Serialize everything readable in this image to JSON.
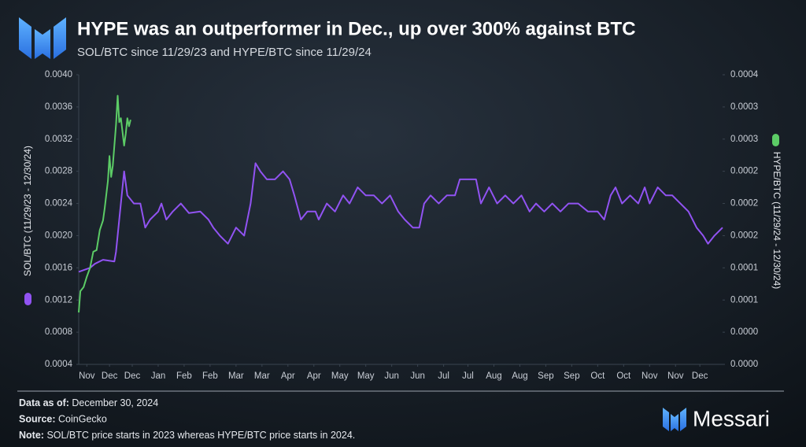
{
  "chart_data": {
    "type": "line",
    "title": "HYPE was an outperformer in Dec., up over 300% against BTC",
    "subtitle": "SOL/BTC since 11/29/23 and HYPE/BTC since 11/29/24",
    "ylabel": "SOL/BTC (11/29/23 - 12/30/24)",
    "y2label": "HYPE/BTC (11/29/24 - 12/30/24)",
    "xlim": [
      0,
      397
    ],
    "xticks": [
      {
        "value": 5,
        "label": "Nov"
      },
      {
        "value": 19,
        "label": "Dec"
      },
      {
        "value": 33,
        "label": "Dec"
      },
      {
        "value": 49,
        "label": "Jan"
      },
      {
        "value": 65,
        "label": "Feb"
      },
      {
        "value": 81,
        "label": "Feb"
      },
      {
        "value": 97,
        "label": "Mar"
      },
      {
        "value": 113,
        "label": "Mar"
      },
      {
        "value": 129,
        "label": "Apr"
      },
      {
        "value": 145,
        "label": "Apr"
      },
      {
        "value": 161,
        "label": "May"
      },
      {
        "value": 177,
        "label": "May"
      },
      {
        "value": 193,
        "label": "Jun"
      },
      {
        "value": 209,
        "label": "Jun"
      },
      {
        "value": 225,
        "label": "Jul"
      },
      {
        "value": 240,
        "label": "Jul"
      },
      {
        "value": 256,
        "label": "Aug"
      },
      {
        "value": 272,
        "label": "Aug"
      },
      {
        "value": 288,
        "label": "Sep"
      },
      {
        "value": 304,
        "label": "Sep"
      },
      {
        "value": 320,
        "label": "Oct"
      },
      {
        "value": 336,
        "label": "Oct"
      },
      {
        "value": 352,
        "label": "Nov"
      },
      {
        "value": 368,
        "label": "Nov"
      },
      {
        "value": 383,
        "label": "Dec"
      }
    ],
    "ylim": [
      0.0004,
      0.004
    ],
    "yticks": [
      0.0004,
      0.0008,
      0.0012,
      0.0016,
      {
        "value": 0.002,
        "label": "0.0020"
      },
      0.0024,
      0.0028,
      0.0032,
      0.0036,
      {
        "value": 0.004,
        "label": "0.0040"
      }
    ],
    "y2lim": [
      0,
      0.00036
    ],
    "y2ticks": [
      {
        "value": 0,
        "label": "0.0000"
      },
      {
        "value": 4e-05,
        "label": "0.0000"
      },
      {
        "value": 8e-05,
        "label": "0.0001"
      },
      {
        "value": 0.00012,
        "label": "0.0001"
      },
      {
        "value": 0.00016,
        "label": "0.0002"
      },
      {
        "value": 0.0002,
        "label": "0.0002"
      },
      {
        "value": 0.00024,
        "label": "0.0002"
      },
      {
        "value": 0.00028,
        "label": "0.0003"
      },
      {
        "value": 0.00032,
        "label": "0.0003"
      },
      {
        "value": 0.00036,
        "label": "0.0004"
      }
    ],
    "grid": false,
    "series": [
      {
        "name": "SOL/BTC",
        "color": "#9153f2",
        "axis": "y",
        "x": [
          0,
          7,
          10,
          15,
          22,
          23,
          25,
          28,
          30,
          34,
          38,
          41,
          44,
          49,
          51,
          54,
          58,
          63,
          68,
          75,
          80,
          83,
          87,
          92,
          97,
          102,
          106,
          109,
          112,
          116,
          121,
          126,
          130,
          133,
          137,
          141,
          146,
          148,
          153,
          158,
          163,
          167,
          172,
          177,
          182,
          187,
          192,
          197,
          201,
          206,
          210,
          213,
          217,
          222,
          227,
          232,
          235,
          240,
          245,
          248,
          253,
          258,
          263,
          268,
          273,
          278,
          282,
          287,
          292,
          297,
          302,
          308,
          314,
          320,
          324,
          328,
          331,
          335,
          340,
          345,
          349,
          352,
          357,
          362,
          366,
          371,
          376,
          381,
          385,
          388,
          392,
          397
        ],
        "values": [
          0.00155,
          0.0016,
          0.00165,
          0.0017,
          0.00168,
          0.0018,
          0.0022,
          0.0028,
          0.0025,
          0.0024,
          0.0024,
          0.0021,
          0.0022,
          0.0023,
          0.0024,
          0.0022,
          0.0023,
          0.0024,
          0.00228,
          0.0023,
          0.0022,
          0.0021,
          0.002,
          0.0019,
          0.0021,
          0.002,
          0.0024,
          0.0029,
          0.0028,
          0.0027,
          0.0027,
          0.0028,
          0.0027,
          0.0025,
          0.0022,
          0.0023,
          0.0023,
          0.0022,
          0.0024,
          0.0023,
          0.0025,
          0.0024,
          0.0026,
          0.0025,
          0.0025,
          0.0024,
          0.0025,
          0.0023,
          0.0022,
          0.0021,
          0.0021,
          0.0024,
          0.0025,
          0.0024,
          0.0025,
          0.0025,
          0.0027,
          0.0027,
          0.0027,
          0.0024,
          0.0026,
          0.0024,
          0.0025,
          0.0024,
          0.0025,
          0.0023,
          0.0024,
          0.0023,
          0.0024,
          0.0023,
          0.0024,
          0.0024,
          0.0023,
          0.0023,
          0.0022,
          0.0025,
          0.0026,
          0.0024,
          0.0025,
          0.0024,
          0.0026,
          0.0024,
          0.0026,
          0.0025,
          0.0025,
          0.0024,
          0.0023,
          0.0021,
          0.002,
          0.0019,
          0.002,
          0.0021
        ]
      },
      {
        "name": "HYPE/BTC",
        "color": "#5ccc66",
        "axis": "y2",
        "x": [
          0,
          1,
          3,
          5,
          7,
          9,
          11,
          13,
          15,
          16,
          18,
          19,
          20,
          21,
          23,
          24,
          25,
          26,
          28,
          29,
          30,
          31,
          32
        ],
        "values": [
          6.46e-05,
          9.1e-05,
          9.6e-05,
          0.000109,
          0.00012,
          0.00014,
          0.000142,
          0.000167,
          0.000179,
          0.000194,
          0.000228,
          0.000259,
          0.000233,
          0.000247,
          0.000298,
          0.000334,
          0.000301,
          0.000306,
          0.000272,
          0.000287,
          0.000306,
          0.000296,
          0.000304
        ]
      }
    ]
  },
  "footer": {
    "notes": [
      {
        "label": "Data as of:",
        "text": "December 30, 2024"
      },
      {
        "label": "Source:",
        "text": "CoinGecko"
      },
      {
        "label": "Note:",
        "text": "SOL/BTC price starts in 2023 whereas HYPE/BTC price starts in 2024."
      }
    ],
    "brand": "Messari"
  }
}
